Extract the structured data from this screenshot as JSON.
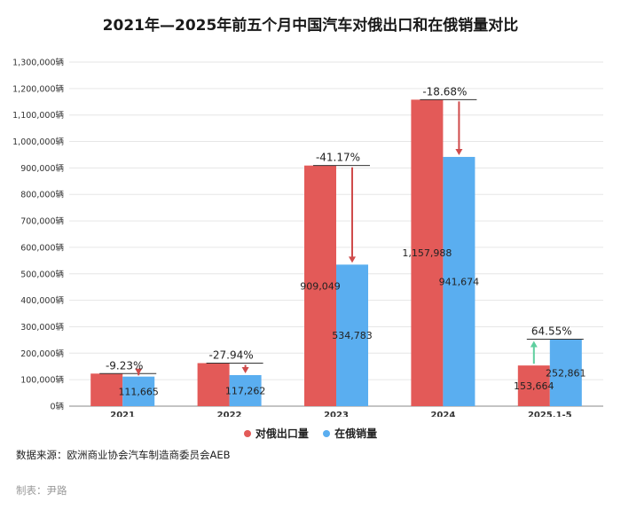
{
  "title": "2021年—2025年前五个月中国汽车对俄出口和在俄销量对比",
  "source": "数据来源：欧洲商业协会汽车制造商委员会AEB",
  "maker": "制表：尹路",
  "colors": {
    "export": "#e35a58",
    "sales": "#5aaef0",
    "down": "#cf4b4b",
    "up": "#5fcf9f"
  },
  "chart_data": {
    "type": "bar",
    "title": "2021年—2025年前五个月中国汽车对俄出口和在俄销量对比",
    "categories": [
      "2021",
      "2022",
      "2023",
      "2024",
      "2025.1-5"
    ],
    "series": [
      {
        "name": "对俄出口量",
        "values": [
          123000,
          162600,
          909049,
          1157988,
          153664
        ]
      },
      {
        "name": "在俄销量",
        "values": [
          111665,
          117262,
          534783,
          941674,
          252861
        ]
      }
    ],
    "export_labels": [
      "",
      "",
      "909,049",
      "1,157,988",
      "153,664"
    ],
    "sales_labels": [
      "111,665",
      "117,262",
      "534,783",
      "941,674",
      "252,861"
    ],
    "changes": [
      "-9.23%",
      "-27.94%",
      "-41.17%",
      "-18.68%",
      "64.55%"
    ],
    "change_direction": [
      "down",
      "down",
      "down",
      "down",
      "up"
    ],
    "ylim": [
      0,
      1300000
    ],
    "yticks": [
      "0辆",
      "100,000辆",
      "200,000辆",
      "300,000辆",
      "400,000辆",
      "500,000辆",
      "600,000辆",
      "700,000辆",
      "800,000辆",
      "900,000辆",
      "1,000,000辆",
      "1,100,000辆",
      "1,200,000辆",
      "1,300,000辆"
    ],
    "grid": true,
    "legend_position": "bottom"
  }
}
